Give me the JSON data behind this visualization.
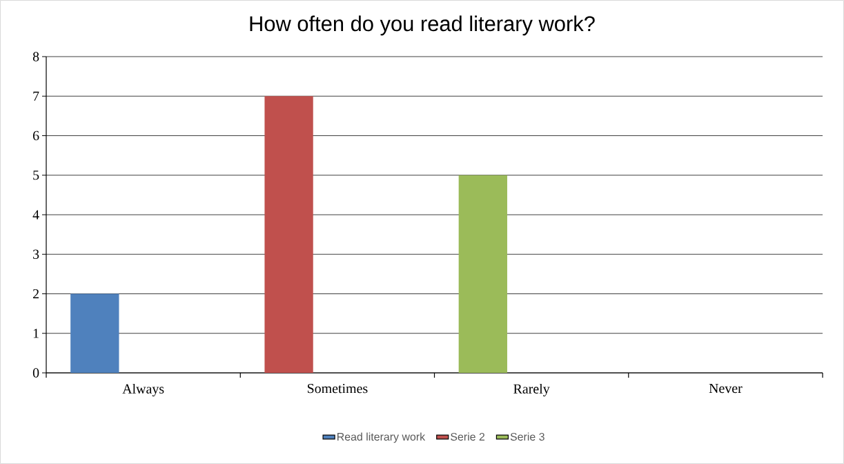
{
  "chart_data": {
    "type": "bar",
    "title": "How often do you read literary work?",
    "categories": [
      "Always",
      "Sometimes",
      "Rarely",
      "Never"
    ],
    "series": [
      {
        "name": "Read literary work",
        "color": "#4f81bd",
        "values": [
          2,
          null,
          null,
          null
        ]
      },
      {
        "name": "Serie 2",
        "color": "#c0504d",
        "values": [
          null,
          7,
          null,
          null
        ]
      },
      {
        "name": "Serie 3",
        "color": "#9bbb59",
        "values": [
          null,
          null,
          5,
          null
        ]
      }
    ],
    "ylim": [
      0,
      8
    ],
    "yticks": [
      0,
      1,
      2,
      3,
      4,
      5,
      6,
      7,
      8
    ],
    "grid": "y",
    "legend": "bottom"
  }
}
